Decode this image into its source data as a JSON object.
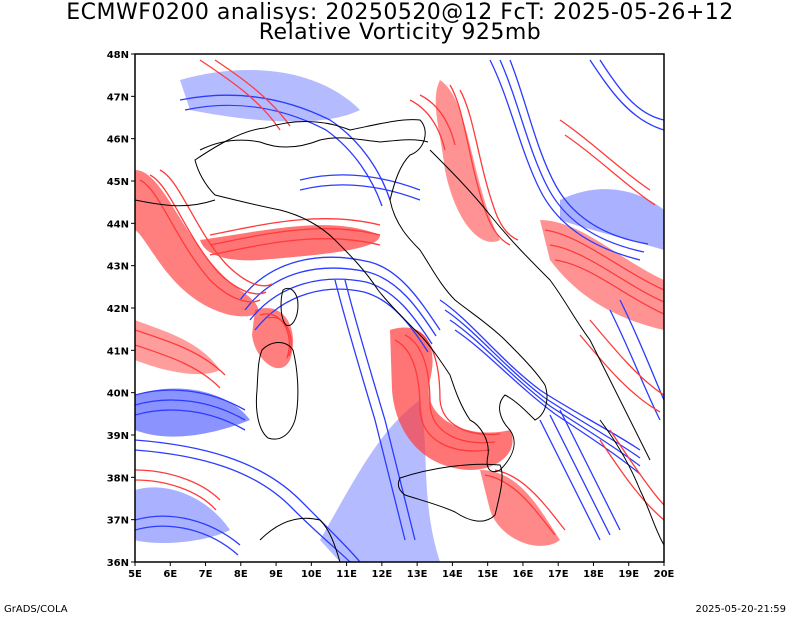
{
  "header": {
    "title_line1": "ECMWF0200 analisys: 20250520@12 FcT: 2025-05-26+12",
    "title_line2": "Relative Vorticity 925mb"
  },
  "map": {
    "lon_ticks": [
      "5E",
      "6E",
      "7E",
      "8E",
      "9E",
      "10E",
      "11E",
      "12E",
      "13E",
      "14E",
      "15E",
      "16E",
      "17E",
      "18E",
      "19E",
      "20E"
    ],
    "lat_ticks": [
      "48N",
      "47N",
      "46N",
      "45N",
      "44N",
      "43N",
      "42N",
      "41N",
      "40N",
      "39N",
      "38N",
      "37N",
      "36N"
    ],
    "lon_range": [
      5,
      20
    ],
    "lat_range": [
      36,
      48
    ],
    "colors": {
      "positive_vorticity": "#ff3b3b",
      "negative_vorticity": "#2b3bff",
      "coastline": "#000000",
      "background": "#ffffff"
    }
  },
  "footer": {
    "left": "GrADS/COLA",
    "right": "2025-05-20-21:59"
  }
}
